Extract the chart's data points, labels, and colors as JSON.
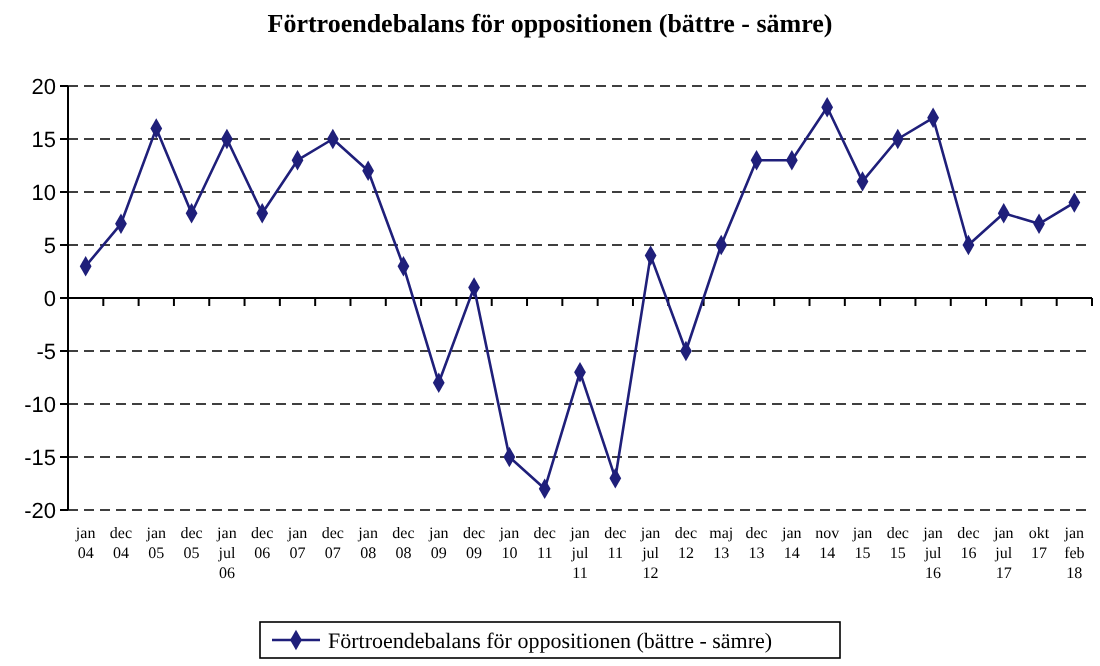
{
  "chart_data": {
    "type": "line",
    "title": "Förtroendebalans för oppositionen (bättre - sämre)",
    "categories": [
      "jan\n04",
      "dec\n04",
      "jan\n05",
      "dec\n05",
      "jan\njul\n06",
      "dec\n06",
      "jan\n07",
      "dec\n07",
      "jan\n08",
      "dec\n08",
      "jan\n09",
      "dec\n09",
      "jan\n10",
      "dec\n11",
      "jan\njul\n11",
      "dec\n11",
      "jan\njul\n12",
      "dec\n12",
      "maj\n13",
      "dec\n13",
      "jan\n14",
      "nov\n14",
      "jan\n15",
      "dec\n15",
      "jan\njul\n16",
      "dec\n16",
      "jan\njul\n17",
      "okt\n17",
      "jan\nfeb\n18"
    ],
    "series": [
      {
        "name": "Förtroendebalans för oppositionen (bättre - sämre)",
        "color": "#1f1f7a",
        "values": [
          3,
          7,
          16,
          8,
          15,
          8,
          13,
          15,
          12,
          3,
          -8,
          1,
          -15,
          -18,
          -7,
          -17,
          4,
          -5,
          5,
          13,
          13,
          18,
          11,
          15,
          17,
          5,
          8,
          7,
          9
        ]
      }
    ],
    "ylim": [
      -20,
      20
    ],
    "yticks": [
      -20,
      -15,
      -10,
      -5,
      0,
      5,
      10,
      15,
      20
    ],
    "grid": "y",
    "line_style": "solid",
    "marker": "diamond",
    "legend": "bottom"
  }
}
